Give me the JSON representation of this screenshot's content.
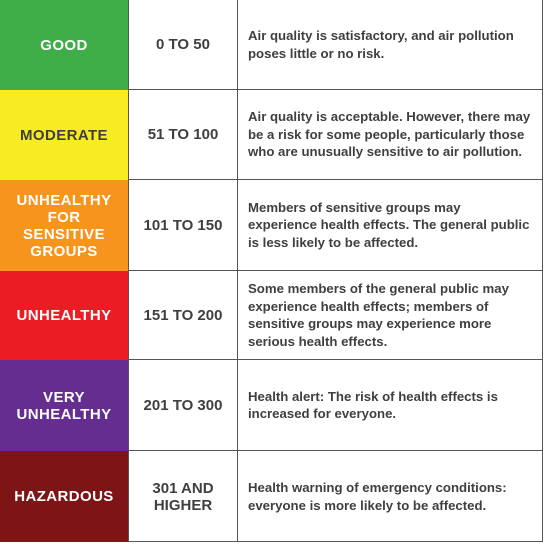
{
  "rows": [
    {
      "level": "GOOD",
      "range": "0 TO 50",
      "description": "Air quality is satisfactory, and air pollution poses little or no risk.",
      "color": "#3fae49"
    },
    {
      "level": "MODERATE",
      "range": "51 TO 100",
      "description": "Air quality is acceptable. However, there may be a risk for some people, particularly those who are unusually sensitive to air pollution.",
      "color": "#f7ec22"
    },
    {
      "level": "UNHEALTHY FOR SENSITIVE GROUPS",
      "range": "101 TO 150",
      "description": "Members of sensitive groups may experience health effects. The general public is less likely to be affected.",
      "color": "#f7941d"
    },
    {
      "level": "UNHEALTHY",
      "range": "151 TO 200",
      "description": "Some members of the general public may experience health effects; members of sensitive groups may experience more serious health effects.",
      "color": "#ec1c24"
    },
    {
      "level": "VERY UNHEALTHY",
      "range": "201 TO 300",
      "description": "Health alert: The risk of health effects is increased for everyone.",
      "color": "#662d91"
    },
    {
      "level": "HAZARDOUS",
      "range": "301 AND HIGHER",
      "description": "Health warning of emergency conditions: everyone is more likely to be affected.",
      "color": "#7d1416"
    }
  ],
  "level_text_colors": [
    "#ffffff",
    "#3f3f3f",
    "#ffffff",
    "#ffffff",
    "#ffffff",
    "#ffffff"
  ]
}
